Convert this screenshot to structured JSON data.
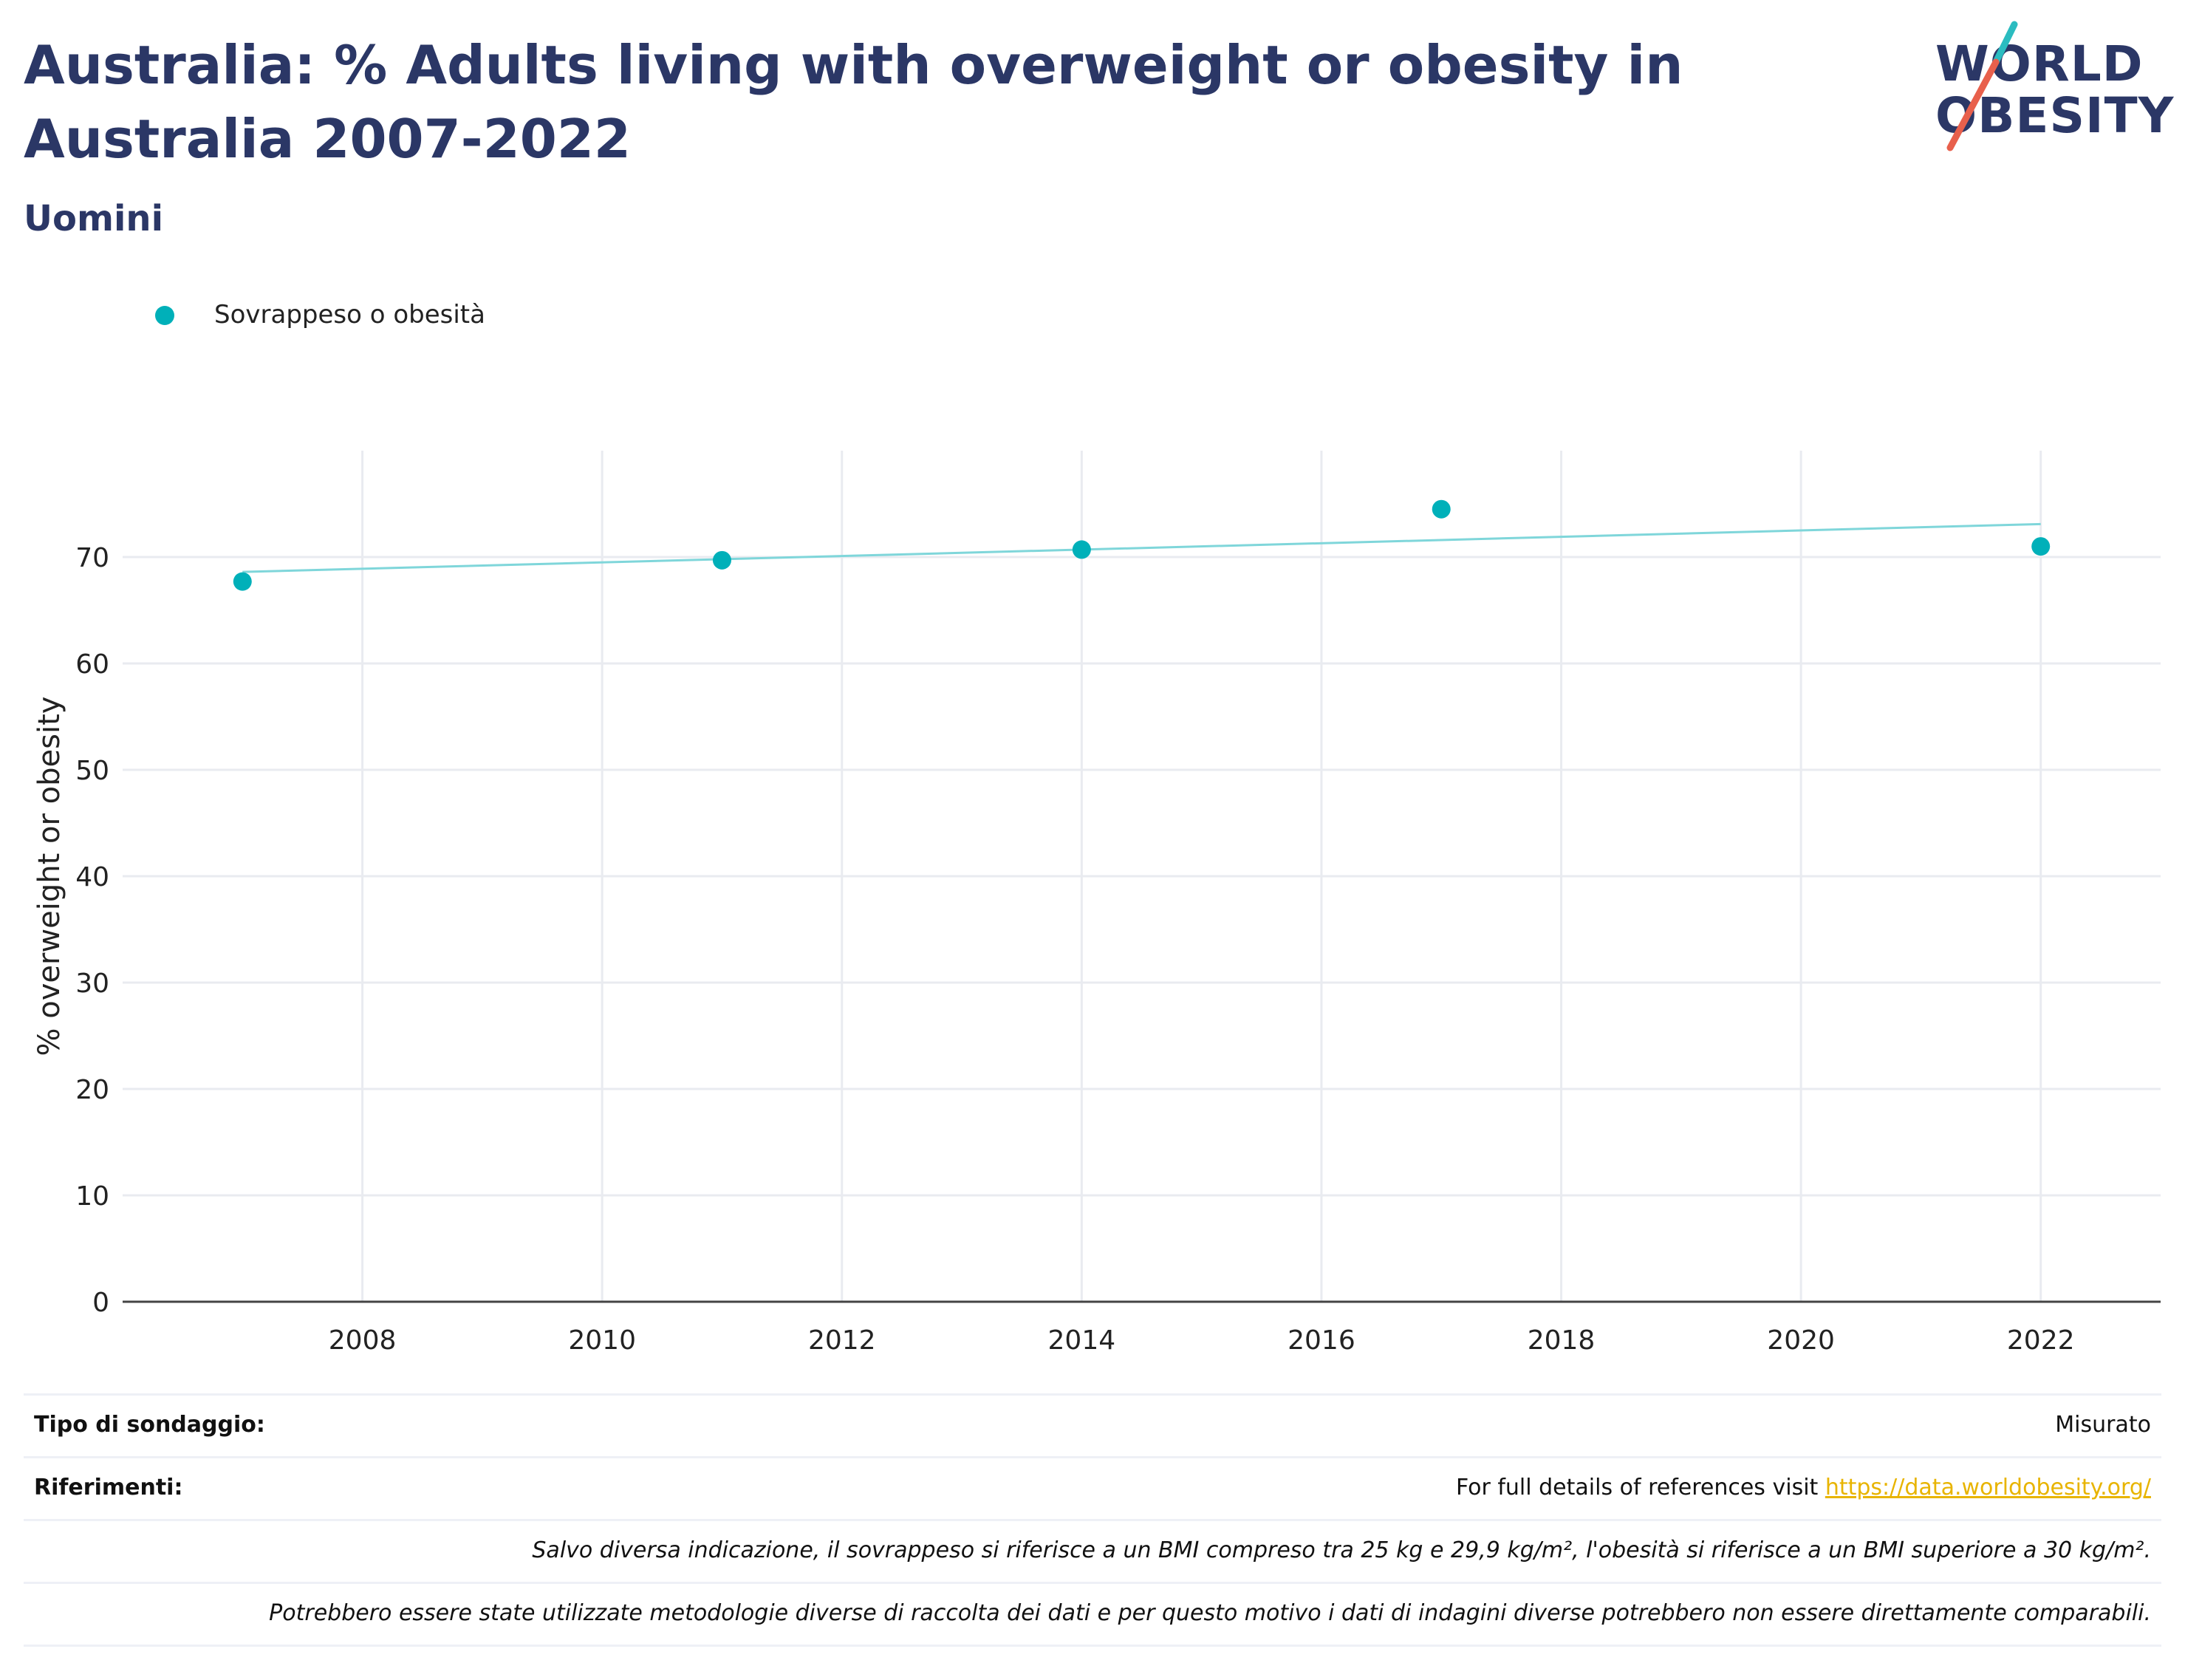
{
  "header": {
    "title": "Australia: % Adults living with overweight or obesity in Australia 2007-2022",
    "subtitle": "Uomini",
    "logo_line1": "WORLD",
    "logo_line2": "OBESITY"
  },
  "colors": {
    "title": "#2b3766",
    "series": "#00b0b9",
    "trend": "#7fd6da",
    "grid": "#e9ebf0",
    "link": "#e8b400",
    "logo_teal": "#2bbcc0",
    "logo_red": "#e8604c"
  },
  "chart_data": {
    "type": "scatter",
    "title": "Australia: % Adults living with overweight or obesity in Australia 2007-2022",
    "subtitle": "Uomini",
    "xlabel": "",
    "ylabel": "% overweight or obesity",
    "xlim": [
      2006,
      2023
    ],
    "ylim": [
      0,
      80
    ],
    "xticks": [
      2008,
      2010,
      2012,
      2014,
      2016,
      2018,
      2020,
      2022
    ],
    "yticks": [
      0,
      10,
      20,
      30,
      40,
      50,
      60,
      70
    ],
    "grid": true,
    "legend_position": "top-left",
    "series": [
      {
        "name": "Sovrappeso o obesità",
        "x": [
          2007,
          2011,
          2014,
          2017,
          2022
        ],
        "y": [
          67.7,
          69.7,
          70.7,
          74.5,
          71.0
        ]
      }
    ],
    "trendline": {
      "x": [
        2007,
        2022
      ],
      "y": [
        68.6,
        73.1
      ]
    }
  },
  "footer": {
    "survey_type_label": "Tipo di sondaggio:",
    "survey_type_value": "Misurato",
    "references_label": "Riferimenti:",
    "references_text": "For full details of references visit ",
    "references_link": "https://data.worldobesity.org/",
    "note_1": "Salvo diversa indicazione, il sovrappeso si riferisce a un BMI compreso tra 25 kg e 29,9 kg/m², l'obesità si riferisce a un BMI superiore a 30 kg/m².",
    "note_2": "Potrebbero essere state utilizzate metodologie diverse di raccolta dei dati e per questo motivo i dati di indagini diverse potrebbero non essere direttamente comparabili."
  }
}
